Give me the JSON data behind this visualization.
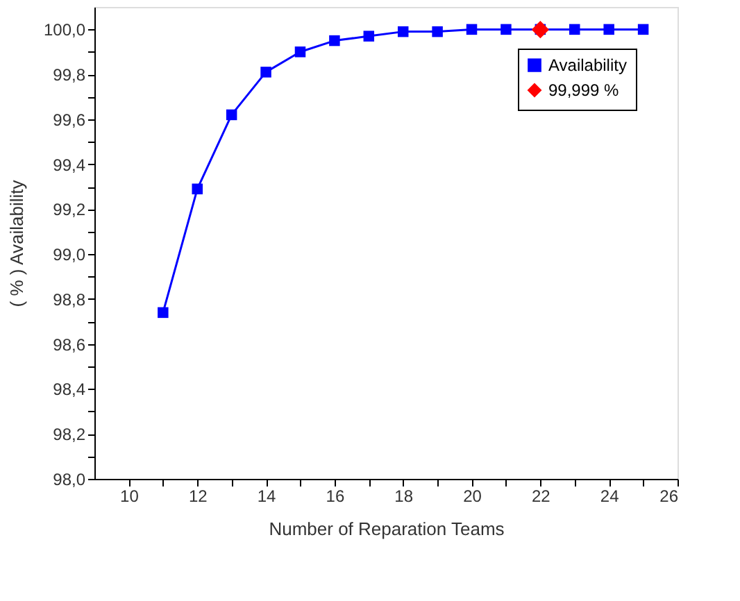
{
  "chart_data": {
    "type": "line",
    "xlabel": "Number of Reparation Teams",
    "ylabel": "( % ) Availability",
    "x": [
      11,
      12,
      13,
      14,
      15,
      16,
      17,
      18,
      19,
      20,
      21,
      22,
      23,
      24,
      25
    ],
    "series": [
      {
        "name": "Availability",
        "color": "#0000ff",
        "marker": "square",
        "line_style": "solid",
        "values": [
          98.74,
          99.29,
          99.62,
          99.81,
          99.9,
          99.95,
          99.97,
          99.99,
          99.99,
          100.0,
          100.0,
          100.0,
          100.0,
          100.0,
          100.0
        ]
      },
      {
        "name": "99,999 %",
        "type": "scatter",
        "color": "#ff0000",
        "marker": "diamond",
        "x": [
          22
        ],
        "values": [
          99.999
        ]
      }
    ],
    "xlim": [
      9,
      26
    ],
    "xticks": [
      10,
      {
        "value": 11,
        "label": null
      },
      12,
      {
        "value": 13,
        "label": null
      },
      14,
      {
        "value": 15,
        "label": null
      },
      16,
      {
        "value": 17,
        "label": null
      },
      18,
      {
        "value": 19,
        "label": null
      },
      20,
      {
        "value": 21,
        "label": null
      },
      22,
      {
        "value": 23,
        "label": null
      },
      24,
      {
        "value": 25,
        "label": null
      },
      26
    ],
    "ylim": [
      98.0,
      100.1
    ],
    "yticks": [
      {
        "value": 98.0,
        "label": "98,0"
      },
      {
        "value": 98.1,
        "label": null
      },
      {
        "value": 98.2,
        "label": "98,2"
      },
      {
        "value": 98.3,
        "label": null
      },
      {
        "value": 98.4,
        "label": "98,4"
      },
      {
        "value": 98.5,
        "label": null
      },
      {
        "value": 98.6,
        "label": "98,6"
      },
      {
        "value": 98.7,
        "label": null
      },
      {
        "value": 98.8,
        "label": "98,8"
      },
      {
        "value": 98.9,
        "label": null
      },
      {
        "value": 99.0,
        "label": "99,0"
      },
      {
        "value": 99.1,
        "label": null
      },
      {
        "value": 99.2,
        "label": "99,2"
      },
      {
        "value": 99.3,
        "label": null
      },
      {
        "value": 99.4,
        "label": "99,4"
      },
      {
        "value": 99.5,
        "label": null
      },
      {
        "value": 99.6,
        "label": "99,6"
      },
      {
        "value": 99.7,
        "label": null
      },
      {
        "value": 99.8,
        "label": "99,8"
      },
      {
        "value": 99.9,
        "label": null
      },
      {
        "value": 100.0,
        "label": "100,0"
      }
    ],
    "grid": false,
    "legend": "top right"
  }
}
